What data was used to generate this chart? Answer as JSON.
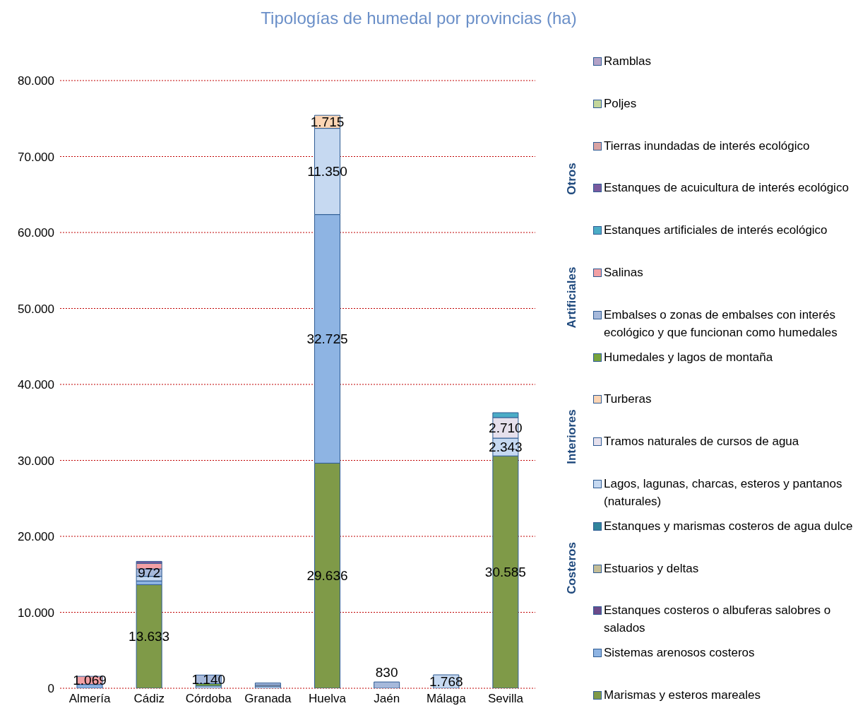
{
  "chart_data": {
    "type": "bar",
    "title": "Tipologías de humedal por provincias (ha)",
    "stacked": true,
    "categories": [
      "Almería",
      "Cádiz",
      "Córdoba",
      "Granada",
      "Huelva",
      "Jaén",
      "Málaga",
      "Sevilla"
    ],
    "ylim": [
      0,
      80000
    ],
    "yticks": [
      0,
      {
        "value": 10000,
        "label": "10.000"
      },
      {
        "value": 20000,
        "label": "20.000"
      },
      {
        "value": 30000,
        "label": "30.000"
      },
      {
        "value": 40000,
        "label": "40.000"
      },
      {
        "value": 50000,
        "label": "50.000"
      },
      {
        "value": 60000,
        "label": "60.000"
      },
      {
        "value": 70000,
        "label": "70.000"
      },
      {
        "value": 80000,
        "label": "80.000"
      }
    ],
    "grid": "y",
    "legend": "right",
    "annotations": [
      "Costeros",
      "Interiores",
      "Artificiales",
      "Otros"
    ],
    "series": [
      {
        "name": "Marismas y esteros mareales",
        "color": "#7f9a48",
        "values": [
          null,
          13633,
          null,
          null,
          29636,
          null,
          null,
          30585
        ],
        "value_labels": [
          null,
          "13.633",
          null,
          null,
          "29.636",
          null,
          null,
          "30.585"
        ]
      },
      {
        "name": "Sistemas arenosos costeros",
        "color": "#8eb4e3",
        "values": [
          500,
          500,
          null,
          null,
          32725,
          null,
          null,
          null
        ],
        "value_labels": [
          null,
          null,
          null,
          null,
          "32.725",
          null,
          null,
          null
        ]
      },
      {
        "name": "Estanques costeros o albuferas salobres o salados",
        "color": "#6b4a8a",
        "values": [
          null,
          null,
          null,
          null,
          null,
          null,
          null,
          null
        ]
      },
      {
        "name": "Estuarios y deltas",
        "color": "#c4bd97",
        "values": [
          null,
          null,
          null,
          null,
          null,
          null,
          null,
          null
        ]
      },
      {
        "name": "Estanques y marismas costeros de agua dulce",
        "color": "#31859c",
        "values": [
          null,
          null,
          null,
          null,
          null,
          null,
          null,
          null
        ]
      },
      {
        "name": "Lagos, lagunas, charcas, esteros y pantanos (naturales)",
        "color": "#c6d9f1",
        "values": [
          null,
          600,
          300,
          250,
          11350,
          null,
          1768,
          2343
        ],
        "value_labels": [
          null,
          null,
          null,
          null,
          "11.350",
          null,
          "1.768",
          "2.343"
        ]
      },
      {
        "name": "Tramos naturales de cursos de agua",
        "color": "#e6e0ec",
        "values": [
          null,
          null,
          null,
          null,
          null,
          null,
          null,
          2710
        ],
        "value_labels": [
          null,
          null,
          null,
          null,
          null,
          null,
          null,
          "2.710"
        ]
      },
      {
        "name": "Turberas",
        "color": "#fcd5b5",
        "values": [
          null,
          null,
          null,
          150,
          1715,
          null,
          null,
          null
        ],
        "value_labels": [
          null,
          null,
          null,
          null,
          "1.715",
          null,
          null,
          null
        ]
      },
      {
        "name": "Humedales y lagos de montaña",
        "color": "#77a33c",
        "values": [
          null,
          null,
          300,
          null,
          null,
          null,
          null,
          null
        ]
      },
      {
        "name": "Embalses o zonas de embalses con interés ecológico y que funcionan como humedales",
        "color": "#a6b9db",
        "values": [
          null,
          972,
          1140,
          300,
          null,
          830,
          null,
          null
        ],
        "value_labels": [
          null,
          "972",
          "1.140",
          null,
          null,
          "830",
          null,
          null
        ]
      },
      {
        "name": "Salinas",
        "color": "#f2a0a4",
        "values": [
          1069,
          750,
          null,
          null,
          null,
          null,
          null,
          null
        ],
        "value_labels": [
          "1.069",
          null,
          null,
          null,
          null,
          null,
          null,
          null
        ]
      },
      {
        "name": "Estanques artificiales de interés ecológico",
        "color": "#4bacc6",
        "values": [
          null,
          null,
          null,
          null,
          null,
          null,
          null,
          640
        ]
      },
      {
        "name": "Estanques de acuicultura de interés ecológico",
        "color": "#7a5a9e",
        "values": [
          null,
          250,
          null,
          null,
          null,
          null,
          null,
          null
        ]
      },
      {
        "name": "Tierras inundadas de interés ecológico",
        "color": "#d9a3a3",
        "values": [
          null,
          null,
          null,
          null,
          null,
          null,
          null,
          null
        ]
      },
      {
        "name": "Poljes",
        "color": "#c3d69b",
        "values": [
          null,
          null,
          null,
          null,
          null,
          null,
          null,
          null
        ]
      },
      {
        "name": "Ramblas",
        "color": "#b3a2c7",
        "values": [
          null,
          null,
          null,
          null,
          null,
          null,
          null,
          null
        ]
      }
    ]
  }
}
